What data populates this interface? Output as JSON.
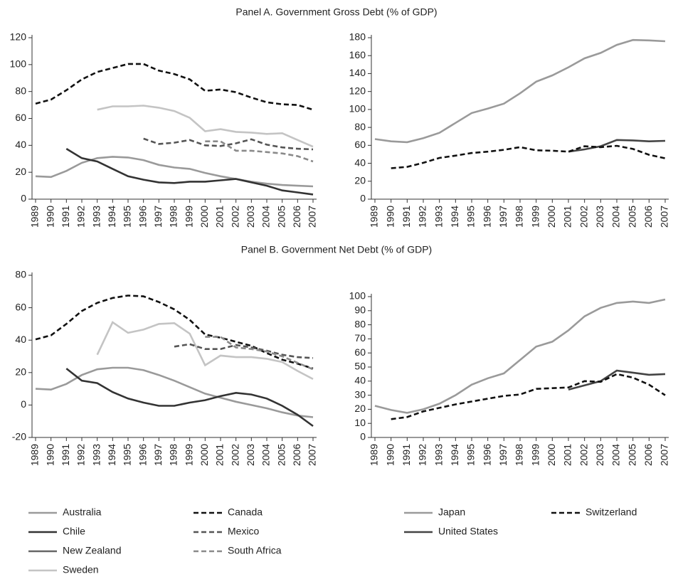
{
  "chart_data": [
    {
      "type": "line",
      "title": "Panel A. Government Gross Debt (% of GDP)",
      "x": [
        "1989",
        "1990",
        "1991",
        "1992",
        "1993",
        "1994",
        "1995",
        "1996",
        "1997",
        "1998",
        "1999",
        "2000",
        "2001",
        "2002",
        "2003",
        "2004",
        "2005",
        "2006",
        "2007"
      ],
      "ylim": [
        0,
        120
      ],
      "yticks": [
        0,
        20,
        40,
        60,
        80,
        100,
        120
      ],
      "series": [
        {
          "color": "#9a9a9a",
          "dash": false,
          "values": [
            17,
            16.5,
            21,
            27,
            30.5,
            31.5,
            31,
            29,
            25.5,
            23.5,
            22.5,
            19.5,
            17,
            15,
            13,
            11.5,
            10.5,
            10,
            9.5
          ]
        },
        {
          "color": "#333333",
          "dash": false,
          "values": [
            null,
            null,
            37.5,
            30.5,
            28,
            22.5,
            17,
            14.5,
            12.5,
            12,
            13,
            13,
            14,
            15,
            12.5,
            10,
            6.5,
            5,
            3.5
          ]
        },
        {
          "color": "#666666",
          "dash": false,
          "values": [
            null,
            null,
            null,
            null,
            null,
            null,
            null,
            null,
            null,
            null,
            null,
            null,
            null,
            null,
            null,
            null,
            null,
            null,
            null
          ]
        },
        {
          "color": "#c4c4c4",
          "dash": false,
          "values": [
            null,
            null,
            null,
            null,
            66.5,
            69,
            69,
            69.5,
            68,
            65.5,
            60.5,
            50.5,
            52,
            50,
            49.5,
            48.5,
            49,
            44,
            39
          ]
        },
        {
          "color": "#111111",
          "dash": true,
          "values": [
            71,
            74,
            81,
            89,
            94.5,
            97.5,
            100.5,
            100.5,
            95.5,
            93,
            89,
            80.5,
            81.5,
            79.5,
            75.5,
            72,
            70.5,
            70,
            66.5
          ]
        },
        {
          "color": "#555555",
          "dash": true,
          "values": [
            null,
            null,
            null,
            null,
            null,
            null,
            null,
            45,
            41,
            42,
            44,
            40,
            39.5,
            41.5,
            44.5,
            40.5,
            38.5,
            37.5,
            37
          ]
        },
        {
          "color": "#8a8a8a",
          "dash": true,
          "values": [
            null,
            null,
            null,
            null,
            null,
            null,
            null,
            null,
            null,
            null,
            null,
            43,
            43,
            36,
            36,
            35,
            34,
            32,
            28
          ]
        }
      ]
    },
    {
      "type": "line",
      "x": [
        "1989",
        "1990",
        "1991",
        "1992",
        "1993",
        "1994",
        "1995",
        "1996",
        "1997",
        "1998",
        "1999",
        "2000",
        "2001",
        "2002",
        "2003",
        "2004",
        "2005",
        "2006",
        "2007"
      ],
      "ylim": [
        0,
        180
      ],
      "yticks": [
        0,
        20,
        40,
        60,
        80,
        100,
        120,
        140,
        160,
        180
      ],
      "series": [
        {
          "color": "#9a9a9a",
          "dash": false,
          "values": [
            67,
            64.5,
            63.5,
            68,
            74,
            85,
            96,
            101,
            106.5,
            118,
            131,
            138,
            147,
            157,
            163,
            172,
            177.5,
            177,
            176
          ]
        },
        {
          "color": "#444444",
          "dash": false,
          "values": [
            null,
            null,
            null,
            null,
            null,
            null,
            null,
            null,
            null,
            null,
            null,
            null,
            53,
            55.5,
            59,
            66,
            65.5,
            64.5,
            65
          ]
        },
        {
          "color": "#111111",
          "dash": true,
          "values": [
            null,
            34.5,
            36,
            40.5,
            46,
            48.5,
            51.5,
            53,
            55,
            58,
            54.5,
            54,
            53,
            59,
            58,
            59.5,
            56,
            49.5,
            45.5
          ]
        }
      ]
    },
    {
      "type": "line",
      "title": "Panel B. Government Net Debt (% of GDP)",
      "x": [
        "1989",
        "1990",
        "1991",
        "1992",
        "1993",
        "1994",
        "1995",
        "1996",
        "1997",
        "1998",
        "1999",
        "2000",
        "2001",
        "2002",
        "2003",
        "2004",
        "2005",
        "2006",
        "2007"
      ],
      "ylim": [
        -20,
        80
      ],
      "yticks": [
        -20,
        0,
        20,
        40,
        60,
        80
      ],
      "series": [
        {
          "name": "Australia",
          "color": "#9a9a9a",
          "dash": false,
          "values": [
            10,
            9.5,
            13,
            18.5,
            22,
            23,
            23,
            21.5,
            18.5,
            15,
            11,
            7,
            4.5,
            2,
            0,
            -2,
            -4.5,
            -6.5,
            -7.5
          ]
        },
        {
          "name": "Chile",
          "color": "#333333",
          "dash": false,
          "values": [
            null,
            null,
            22.5,
            15,
            13.5,
            8,
            4,
            1.5,
            -0.5,
            -0.5,
            1.5,
            3,
            5.5,
            7.5,
            6.5,
            4,
            -0.5,
            -6,
            -13
          ]
        },
        {
          "name": "New Zealand",
          "color": "#666666",
          "dash": false,
          "values": [
            null,
            null,
            null,
            null,
            null,
            null,
            null,
            null,
            null,
            null,
            null,
            null,
            null,
            null,
            null,
            null,
            null,
            null,
            null
          ]
        },
        {
          "name": "Sweden",
          "color": "#c4c4c4",
          "dash": false,
          "values": [
            null,
            null,
            null,
            null,
            31,
            51,
            44.5,
            46.5,
            50,
            50.5,
            44,
            24.5,
            30.5,
            29.5,
            29.5,
            28.5,
            26.5,
            21,
            16
          ]
        },
        {
          "name": "Canada",
          "color": "#111111",
          "dash": true,
          "values": [
            40.5,
            43,
            50,
            58,
            63,
            66,
            67.5,
            67,
            63.5,
            59,
            52.5,
            43.5,
            41.5,
            39,
            36.5,
            32,
            28,
            25.5,
            22.5
          ]
        },
        {
          "name": "Mexico",
          "color": "#555555",
          "dash": true,
          "values": [
            null,
            null,
            null,
            null,
            null,
            null,
            null,
            null,
            null,
            36,
            37.5,
            34.5,
            34.5,
            37,
            35.5,
            33.5,
            31,
            29.5,
            29
          ]
        },
        {
          "name": "South Africa",
          "color": "#8a8a8a",
          "dash": true,
          "values": [
            null,
            null,
            null,
            null,
            null,
            null,
            null,
            null,
            null,
            null,
            null,
            42,
            42,
            35.5,
            34.5,
            33,
            30,
            26,
            22
          ]
        }
      ]
    },
    {
      "type": "line",
      "x": [
        "1989",
        "1990",
        "1991",
        "1992",
        "1993",
        "1994",
        "1995",
        "1996",
        "1997",
        "1998",
        "1999",
        "2000",
        "2001",
        "2002",
        "2003",
        "2004",
        "2005",
        "2006",
        "2007"
      ],
      "ylim": [
        0,
        100
      ],
      "yticks": [
        0,
        10,
        20,
        30,
        40,
        50,
        60,
        70,
        80,
        90,
        100
      ],
      "series": [
        {
          "name": "Japan",
          "color": "#9a9a9a",
          "dash": false,
          "values": [
            22.5,
            19.5,
            17.5,
            20,
            24,
            30,
            37.5,
            42,
            45.5,
            55,
            64.5,
            68,
            76,
            86,
            92,
            95.5,
            96.5,
            95.5,
            98
          ]
        },
        {
          "name": "United States",
          "color": "#444444",
          "dash": false,
          "values": [
            null,
            null,
            null,
            null,
            null,
            null,
            null,
            null,
            null,
            null,
            null,
            null,
            34,
            37,
            40,
            47.5,
            46,
            44.5,
            45
          ]
        },
        {
          "name": "Switzerland",
          "color": "#111111",
          "dash": true,
          "values": [
            null,
            13,
            14.5,
            18.5,
            21,
            23.5,
            25.5,
            27.5,
            29.5,
            30.5,
            34.5,
            35,
            35.5,
            40,
            39.5,
            45,
            42.5,
            37.5,
            30
          ]
        }
      ]
    }
  ]
}
